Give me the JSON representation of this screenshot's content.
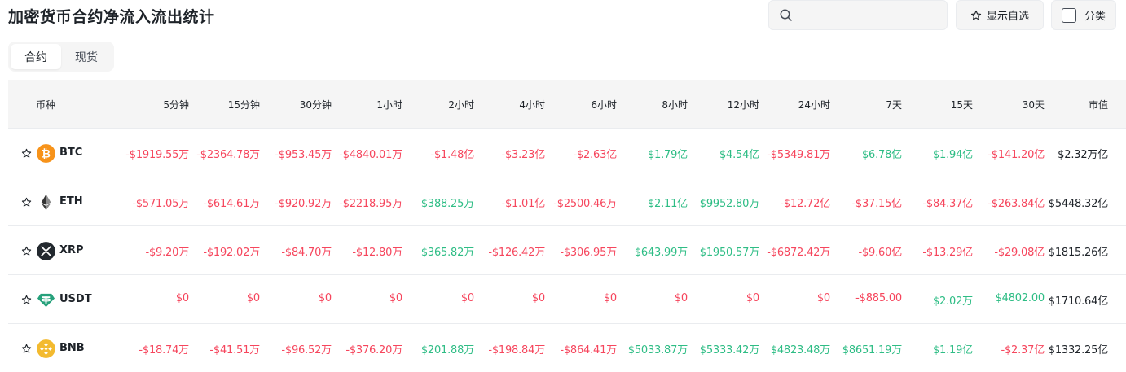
{
  "title": "加密货币合约净流入流出统计",
  "search": {
    "placeholder": "",
    "value": ""
  },
  "watchlist_label": "显示自选",
  "category_label": "分类",
  "tabs": [
    {
      "label": "合约",
      "active": true
    },
    {
      "label": "现货",
      "active": false
    }
  ],
  "columns": [
    "币种",
    "5分钟",
    "15分钟",
    "30分钟",
    "1小时",
    "2小时",
    "4小时",
    "6小时",
    "8小时",
    "12小时",
    "24小时",
    "7天",
    "15天",
    "30天",
    "市值"
  ],
  "colors": {
    "positive": "#2ebd85",
    "negative": "#f6465d",
    "neutral": "#1e2329"
  },
  "rows": [
    {
      "coin": "BTC",
      "icon": "btc-icon",
      "values": [
        "-$1919.55万",
        "-$2364.78万",
        "-$953.45万",
        "-$4840.01万",
        "-$1.48亿",
        "-$3.23亿",
        "-$2.63亿",
        "$1.79亿",
        "$4.54亿",
        "-$5349.81万",
        "$6.78亿",
        "$1.94亿",
        "-$141.20亿"
      ],
      "market_cap": "$2.32万亿"
    },
    {
      "coin": "ETH",
      "icon": "eth-icon",
      "values": [
        "-$571.05万",
        "-$614.61万",
        "-$920.92万",
        "-$2218.95万",
        "$388.25万",
        "-$1.01亿",
        "-$2500.46万",
        "$2.11亿",
        "$9952.80万",
        "-$12.72亿",
        "-$37.15亿",
        "-$84.37亿",
        "-$263.84亿"
      ],
      "market_cap": "$5448.32亿"
    },
    {
      "coin": "XRP",
      "icon": "xrp-icon",
      "values": [
        "-$9.20万",
        "-$192.02万",
        "-$84.70万",
        "-$12.80万",
        "$365.82万",
        "-$126.42万",
        "-$306.95万",
        "$643.99万",
        "$1950.57万",
        "-$6872.42万",
        "-$9.60亿",
        "-$13.29亿",
        "-$29.08亿"
      ],
      "market_cap": "$1815.26亿"
    },
    {
      "coin": "USDT",
      "icon": "usdt-icon",
      "values": [
        "$0",
        "$0",
        "$0",
        "$0",
        "$0",
        "$0",
        "$0",
        "$0",
        "$0",
        "$0",
        "-$885.00",
        "$2.02万",
        "$4802.00"
      ],
      "market_cap": "$1710.64亿"
    },
    {
      "coin": "BNB",
      "icon": "bnb-icon",
      "values": [
        "-$18.74万",
        "-$41.51万",
        "-$96.52万",
        "-$376.20万",
        "$201.88万",
        "-$198.84万",
        "-$864.41万",
        "$5033.87万",
        "$5333.42万",
        "$4823.48万",
        "$8651.19万",
        "$1.19亿",
        "-$2.37亿"
      ],
      "market_cap": "$1332.25亿"
    }
  ]
}
